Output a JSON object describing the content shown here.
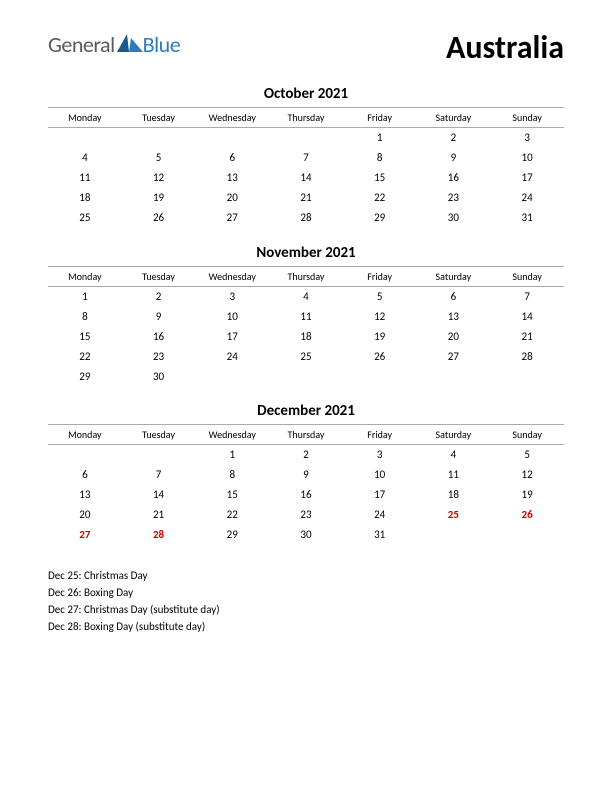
{
  "logo": {
    "text_general": "General",
    "text_blue": "Blue"
  },
  "country": "Australia",
  "weekdays": [
    "Monday",
    "Tuesday",
    "Wednesday",
    "Thursday",
    "Friday",
    "Saturday",
    "Sunday"
  ],
  "colors": {
    "text": "#000000",
    "holiday": "#cc0000",
    "logo_gray": "#5a5a5a",
    "logo_blue": "#2b7bbf",
    "logo_shape": "#1a5a8a",
    "grid_border": "#aaaaaa",
    "background": "#ffffff"
  },
  "typography": {
    "country_fontsize": 32,
    "month_fontsize": 15,
    "weekday_fontsize": 10,
    "day_fontsize": 11,
    "holiday_list_fontsize": 11
  },
  "months": [
    {
      "title": "October 2021",
      "weeks": [
        [
          "",
          "",
          "",
          "",
          "1",
          "2",
          "3"
        ],
        [
          "4",
          "5",
          "6",
          "7",
          "8",
          "9",
          "10"
        ],
        [
          "11",
          "12",
          "13",
          "14",
          "15",
          "16",
          "17"
        ],
        [
          "18",
          "19",
          "20",
          "21",
          "22",
          "23",
          "24"
        ],
        [
          "25",
          "26",
          "27",
          "28",
          "29",
          "30",
          "31"
        ]
      ],
      "holidays": []
    },
    {
      "title": "November 2021",
      "weeks": [
        [
          "1",
          "2",
          "3",
          "4",
          "5",
          "6",
          "7"
        ],
        [
          "8",
          "9",
          "10",
          "11",
          "12",
          "13",
          "14"
        ],
        [
          "15",
          "16",
          "17",
          "18",
          "19",
          "20",
          "21"
        ],
        [
          "22",
          "23",
          "24",
          "25",
          "26",
          "27",
          "28"
        ],
        [
          "29",
          "30",
          "",
          "",
          "",
          "",
          ""
        ]
      ],
      "holidays": []
    },
    {
      "title": "December 2021",
      "weeks": [
        [
          "",
          "",
          "1",
          "2",
          "3",
          "4",
          "5"
        ],
        [
          "6",
          "7",
          "8",
          "9",
          "10",
          "11",
          "12"
        ],
        [
          "13",
          "14",
          "15",
          "16",
          "17",
          "18",
          "19"
        ],
        [
          "20",
          "21",
          "22",
          "23",
          "24",
          "25",
          "26"
        ],
        [
          "27",
          "28",
          "29",
          "30",
          "31",
          "",
          ""
        ]
      ],
      "holidays": [
        "25",
        "26",
        "27",
        "28"
      ]
    }
  ],
  "holiday_list": [
    "Dec 25: Christmas Day",
    "Dec 26: Boxing Day",
    "Dec 27: Christmas Day (substitute day)",
    "Dec 28: Boxing Day (substitute day)"
  ]
}
